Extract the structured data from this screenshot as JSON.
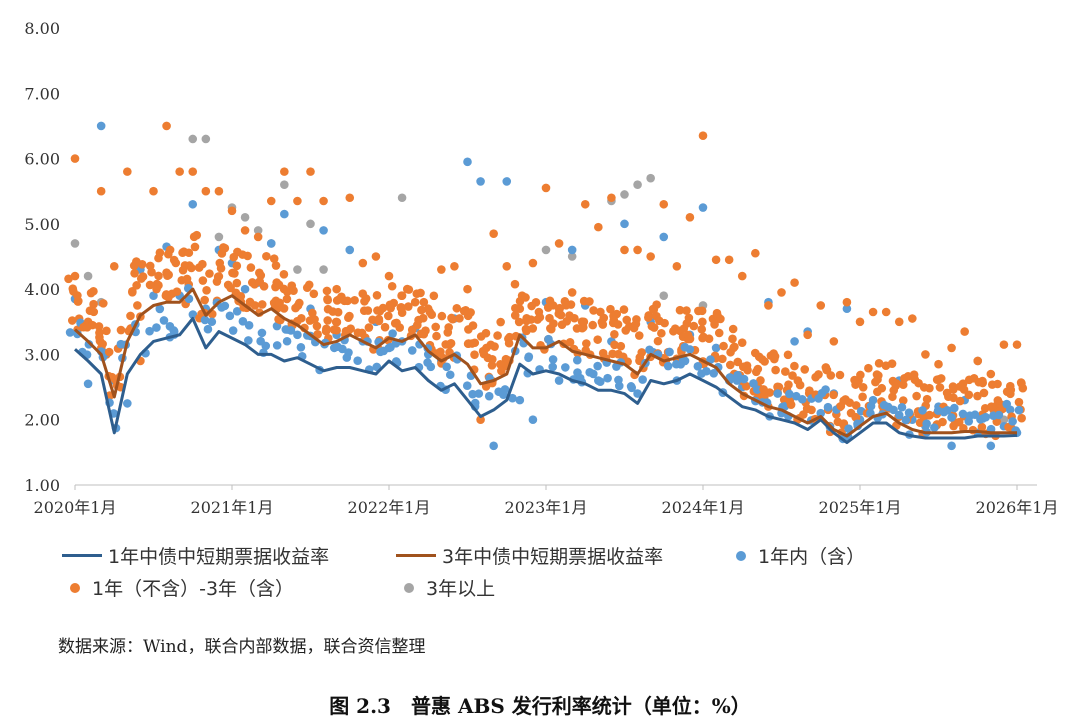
{
  "chart_data": {
    "type": "scatter",
    "ylim": [
      1.0,
      8.0
    ],
    "yticks": [
      "1.00",
      "2.00",
      "3.00",
      "4.00",
      "5.00",
      "6.00",
      "7.00",
      "8.00"
    ],
    "xlim": [
      "2020-01",
      "2026-01"
    ],
    "xticks": [
      "2020年1月",
      "2021年1月",
      "2022年1月",
      "2023年1月",
      "2024年1月",
      "2025年1月",
      "2026年1月"
    ],
    "grid": false,
    "legend_position": "bottom",
    "series": [
      {
        "name": "1年中债中短期票据收益率",
        "kind": "line",
        "color": "#2E5E8E",
        "x": [
          "2020-01",
          "2020-02",
          "2020-03",
          "2020-04",
          "2020-05",
          "2020-06",
          "2020-07",
          "2020-08",
          "2020-09",
          "2020-10",
          "2020-11",
          "2020-12",
          "2021-01",
          "2021-02",
          "2021-03",
          "2021-04",
          "2021-05",
          "2021-06",
          "2021-07",
          "2021-08",
          "2021-09",
          "2021-10",
          "2021-11",
          "2021-12",
          "2022-01",
          "2022-02",
          "2022-03",
          "2022-04",
          "2022-05",
          "2022-06",
          "2022-07",
          "2022-08",
          "2022-09",
          "2022-10",
          "2022-11",
          "2022-12",
          "2023-01",
          "2023-02",
          "2023-03",
          "2023-04",
          "2023-05",
          "2023-06",
          "2023-07",
          "2023-08",
          "2023-09",
          "2023-10",
          "2023-11",
          "2023-12",
          "2024-01",
          "2024-02",
          "2024-03",
          "2024-04",
          "2024-05",
          "2024-06",
          "2024-07",
          "2024-08",
          "2024-09",
          "2024-10",
          "2024-11",
          "2024-12",
          "2025-01",
          "2025-02",
          "2025-03",
          "2025-04",
          "2025-05",
          "2025-06",
          "2025-07",
          "2025-08",
          "2025-09",
          "2025-10",
          "2025-11",
          "2025-12",
          "2026-01"
        ],
        "y": [
          3.08,
          2.9,
          2.7,
          1.8,
          2.7,
          3.0,
          3.2,
          3.25,
          3.3,
          3.55,
          3.1,
          3.35,
          3.25,
          3.15,
          3.0,
          3.0,
          2.9,
          2.95,
          2.85,
          2.75,
          2.8,
          2.8,
          2.75,
          2.7,
          2.9,
          2.75,
          2.8,
          2.6,
          2.45,
          2.55,
          2.3,
          2.05,
          2.15,
          2.3,
          2.85,
          2.7,
          2.75,
          2.7,
          2.6,
          2.55,
          2.45,
          2.45,
          2.4,
          2.25,
          2.6,
          2.55,
          2.6,
          2.7,
          2.6,
          2.5,
          2.35,
          2.2,
          2.15,
          2.05,
          2.0,
          1.95,
          1.85,
          2.0,
          1.8,
          1.65,
          1.8,
          1.95,
          1.95,
          1.8,
          1.75,
          1.72,
          1.72,
          1.72,
          1.72,
          1.75,
          1.75,
          1.75,
          1.76
        ]
      },
      {
        "name": "3年中债中短期票据收益率",
        "kind": "line",
        "color": "#A0521D",
        "x": [
          "2020-01",
          "2020-02",
          "2020-03",
          "2020-04",
          "2020-05",
          "2020-06",
          "2020-07",
          "2020-08",
          "2020-09",
          "2020-10",
          "2020-11",
          "2020-12",
          "2021-01",
          "2021-02",
          "2021-03",
          "2021-04",
          "2021-05",
          "2021-06",
          "2021-07",
          "2021-08",
          "2021-09",
          "2021-10",
          "2021-11",
          "2021-12",
          "2022-01",
          "2022-02",
          "2022-03",
          "2022-04",
          "2022-05",
          "2022-06",
          "2022-07",
          "2022-08",
          "2022-09",
          "2022-10",
          "2022-11",
          "2022-12",
          "2023-01",
          "2023-02",
          "2023-03",
          "2023-04",
          "2023-05",
          "2023-06",
          "2023-07",
          "2023-08",
          "2023-09",
          "2023-10",
          "2023-11",
          "2023-12",
          "2024-01",
          "2024-02",
          "2024-03",
          "2024-04",
          "2024-05",
          "2024-06",
          "2024-07",
          "2024-08",
          "2024-09",
          "2024-10",
          "2024-11",
          "2024-12",
          "2025-01",
          "2025-02",
          "2025-03",
          "2025-04",
          "2025-05",
          "2025-06",
          "2025-07",
          "2025-08",
          "2025-09",
          "2025-10",
          "2025-11",
          "2025-12",
          "2026-01"
        ],
        "y": [
          3.38,
          3.2,
          3.0,
          2.35,
          3.2,
          3.6,
          3.75,
          3.8,
          3.8,
          4.0,
          3.6,
          3.8,
          3.9,
          3.75,
          3.6,
          3.7,
          3.55,
          3.45,
          3.3,
          3.15,
          3.2,
          3.3,
          3.2,
          3.1,
          3.25,
          3.2,
          3.3,
          3.05,
          2.9,
          3.0,
          2.85,
          2.55,
          2.6,
          2.7,
          3.3,
          3.1,
          3.1,
          3.2,
          3.05,
          3.0,
          2.95,
          2.9,
          2.85,
          2.7,
          3.0,
          2.9,
          2.95,
          3.0,
          2.9,
          2.8,
          2.55,
          2.4,
          2.3,
          2.2,
          2.15,
          2.05,
          1.95,
          2.05,
          1.85,
          1.75,
          1.9,
          2.05,
          2.1,
          1.95,
          1.85,
          1.8,
          1.8,
          1.8,
          1.82,
          1.82,
          1.8,
          1.8,
          1.8
        ]
      },
      {
        "name": "1年内（含）",
        "kind": "scatter",
        "color": "#5B9BD5"
      },
      {
        "name": "1年（不含）-3年（含）",
        "kind": "scatter",
        "color": "#ED7D31"
      },
      {
        "name": "3年以上",
        "kind": "scatter",
        "color": "#A5A5A5"
      }
    ],
    "scatter_points": {
      "1年内（含）": [
        [
          "2020-01",
          3.85
        ],
        [
          "2020-02",
          2.55
        ],
        [
          "2020-03",
          6.5
        ],
        [
          "2020-04",
          2.6
        ],
        [
          "2020-05",
          2.25
        ],
        [
          "2020-06",
          4.3
        ],
        [
          "2020-07",
          3.9
        ],
        [
          "2020-08",
          4.65
        ],
        [
          "2020-09",
          3.9
        ],
        [
          "2020-10",
          5.3
        ],
        [
          "2020-11",
          3.7
        ],
        [
          "2020-12",
          4.6
        ],
        [
          "2021-01",
          4.4
        ],
        [
          "2021-02",
          4.0
        ],
        [
          "2021-03",
          4.1
        ],
        [
          "2021-04",
          4.7
        ],
        [
          "2021-05",
          5.15
        ],
        [
          "2021-06",
          3.3
        ],
        [
          "2021-07",
          3.7
        ],
        [
          "2021-08",
          4.9
        ],
        [
          "2021-09",
          3.3
        ],
        [
          "2021-10",
          4.6
        ],
        [
          "2021-11",
          3.2
        ],
        [
          "2021-12",
          3.5
        ],
        [
          "2022-01",
          3.1
        ],
        [
          "2022-02",
          3.2
        ],
        [
          "2022-03",
          3.4
        ],
        [
          "2022-04",
          3.0
        ],
        [
          "2022-05",
          2.9
        ],
        [
          "2022-06",
          3.55
        ],
        [
          "2022-07",
          5.95
        ],
        [
          "2022-08",
          5.65
        ],
        [
          "2022-09",
          1.6
        ],
        [
          "2022-10",
          5.65
        ],
        [
          "2022-11",
          2.3
        ],
        [
          "2022-12",
          2.0
        ],
        [
          "2023-01",
          3.8
        ],
        [
          "2023-02",
          2.6
        ],
        [
          "2023-03",
          4.6
        ],
        [
          "2023-04",
          3.75
        ],
        [
          "2023-05",
          2.6
        ],
        [
          "2023-06",
          3.2
        ],
        [
          "2023-07",
          5.0
        ],
        [
          "2023-08",
          2.4
        ],
        [
          "2023-09",
          3.5
        ],
        [
          "2023-10",
          4.8
        ],
        [
          "2023-11",
          2.6
        ],
        [
          "2023-12",
          3.3
        ],
        [
          "2024-01",
          5.25
        ],
        [
          "2024-02",
          3.1
        ],
        [
          "2024-03",
          2.6
        ],
        [
          "2024-04",
          2.5
        ],
        [
          "2024-05",
          2.3
        ],
        [
          "2024-06",
          3.8
        ],
        [
          "2024-07",
          2.1
        ],
        [
          "2024-08",
          3.2
        ],
        [
          "2024-09",
          3.35
        ],
        [
          "2024-10",
          2.1
        ],
        [
          "2024-11",
          2.4
        ],
        [
          "2024-12",
          3.7
        ],
        [
          "2025-01",
          2.0
        ],
        [
          "2025-02",
          2.3
        ],
        [
          "2025-03",
          2.2
        ],
        [
          "2025-04",
          2.6
        ],
        [
          "2025-05",
          2.0
        ],
        [
          "2025-06",
          1.9
        ],
        [
          "2025-07",
          2.2
        ],
        [
          "2025-08",
          1.6
        ],
        [
          "2025-09",
          2.3
        ],
        [
          "2025-10",
          1.8
        ],
        [
          "2025-11",
          1.6
        ],
        [
          "2025-12",
          1.9
        ],
        [
          "2026-01",
          1.8
        ]
      ],
      "1年（不含）-3年（含）": [
        [
          "2020-01",
          6.0
        ],
        [
          "2020-01",
          4.2
        ],
        [
          "2020-02",
          3.5
        ],
        [
          "2020-03",
          5.5
        ],
        [
          "2020-04",
          4.35
        ],
        [
          "2020-05",
          5.8
        ],
        [
          "2020-06",
          2.9
        ],
        [
          "2020-07",
          5.5
        ],
        [
          "2020-08",
          6.5
        ],
        [
          "2020-09",
          5.8
        ],
        [
          "2020-10",
          5.8
        ],
        [
          "2020-11",
          5.5
        ],
        [
          "2020-12",
          5.5
        ],
        [
          "2021-01",
          5.2
        ],
        [
          "2021-02",
          4.9
        ],
        [
          "2021-03",
          4.8
        ],
        [
          "2021-04",
          5.35
        ],
        [
          "2021-05",
          5.8
        ],
        [
          "2021-06",
          5.35
        ],
        [
          "2021-07",
          5.8
        ],
        [
          "2021-08",
          5.35
        ],
        [
          "2021-09",
          4.0
        ],
        [
          "2021-10",
          5.4
        ],
        [
          "2021-11",
          4.4
        ],
        [
          "2021-12",
          4.5
        ],
        [
          "2022-01",
          4.2
        ],
        [
          "2022-02",
          3.9
        ],
        [
          "2022-03",
          3.8
        ],
        [
          "2022-04",
          3.7
        ],
        [
          "2022-05",
          4.3
        ],
        [
          "2022-06",
          4.35
        ],
        [
          "2022-07",
          4.0
        ],
        [
          "2022-08",
          2.0
        ],
        [
          "2022-09",
          4.85
        ],
        [
          "2022-10",
          4.35
        ],
        [
          "2022-11",
          3.7
        ],
        [
          "2022-12",
          4.4
        ],
        [
          "2023-01",
          5.55
        ],
        [
          "2023-02",
          4.7
        ],
        [
          "2023-03",
          3.95
        ],
        [
          "2023-04",
          5.3
        ],
        [
          "2023-05",
          4.95
        ],
        [
          "2023-06",
          5.4
        ],
        [
          "2023-07",
          4.6
        ],
        [
          "2023-08",
          4.6
        ],
        [
          "2023-09",
          4.5
        ],
        [
          "2023-10",
          5.3
        ],
        [
          "2023-11",
          4.35
        ],
        [
          "2023-12",
          5.1
        ],
        [
          "2024-01",
          6.35
        ],
        [
          "2024-02",
          4.45
        ],
        [
          "2024-03",
          4.45
        ],
        [
          "2024-04",
          4.2
        ],
        [
          "2024-05",
          4.55
        ],
        [
          "2024-06",
          3.75
        ],
        [
          "2024-07",
          3.95
        ],
        [
          "2024-08",
          4.1
        ],
        [
          "2024-09",
          3.3
        ],
        [
          "2024-10",
          3.75
        ],
        [
          "2024-11",
          3.2
        ],
        [
          "2024-12",
          3.8
        ],
        [
          "2025-01",
          3.5
        ],
        [
          "2025-02",
          3.65
        ],
        [
          "2025-03",
          3.65
        ],
        [
          "2025-04",
          3.5
        ],
        [
          "2025-05",
          3.55
        ],
        [
          "2025-06",
          3.0
        ],
        [
          "2025-07",
          2.85
        ],
        [
          "2025-08",
          3.1
        ],
        [
          "2025-09",
          3.35
        ],
        [
          "2025-10",
          2.9
        ],
        [
          "2025-11",
          2.7
        ],
        [
          "2025-12",
          3.15
        ],
        [
          "2026-01",
          3.15
        ]
      ],
      "3年以上": [
        [
          "2020-01",
          4.7
        ],
        [
          "2020-02",
          4.2
        ],
        [
          "2020-03",
          3.8
        ],
        [
          "2020-10",
          6.3
        ],
        [
          "2020-11",
          6.3
        ],
        [
          "2020-12",
          4.8
        ],
        [
          "2021-01",
          5.25
        ],
        [
          "2021-02",
          5.1
        ],
        [
          "2021-03",
          4.9
        ],
        [
          "2021-04",
          4.7
        ],
        [
          "2021-05",
          5.6
        ],
        [
          "2021-06",
          4.3
        ],
        [
          "2021-07",
          5.0
        ],
        [
          "2021-08",
          4.3
        ],
        [
          "2022-02",
          5.4
        ],
        [
          "2023-01",
          4.6
        ],
        [
          "2023-03",
          4.5
        ],
        [
          "2023-06",
          5.35
        ],
        [
          "2023-07",
          5.45
        ],
        [
          "2023-08",
          5.6
        ],
        [
          "2023-09",
          5.7
        ],
        [
          "2023-10",
          3.9
        ],
        [
          "2024-01",
          3.75
        ],
        [
          "2025-10",
          2.9
        ],
        [
          "2025-12",
          2.0
        ]
      ]
    },
    "title": ""
  },
  "legend": {
    "items": [
      {
        "label": "1年中债中短期票据收益率",
        "color": "#2E5E8E",
        "kind": "line"
      },
      {
        "label": "3年中债中短期票据收益率",
        "color": "#A0521D",
        "kind": "line"
      },
      {
        "label": "1年内（含）",
        "color": "#5B9BD5",
        "kind": "dot"
      },
      {
        "label": "1年（不含）-3年（含）",
        "color": "#ED7D31",
        "kind": "dot"
      },
      {
        "label": "3年以上",
        "color": "#A5A5A5",
        "kind": "dot"
      }
    ]
  },
  "source_text": "数据来源：Wind，联合内部数据，联合资信整理",
  "caption": "图 2.3　普惠 ABS 发行利率统计（单位：%）"
}
